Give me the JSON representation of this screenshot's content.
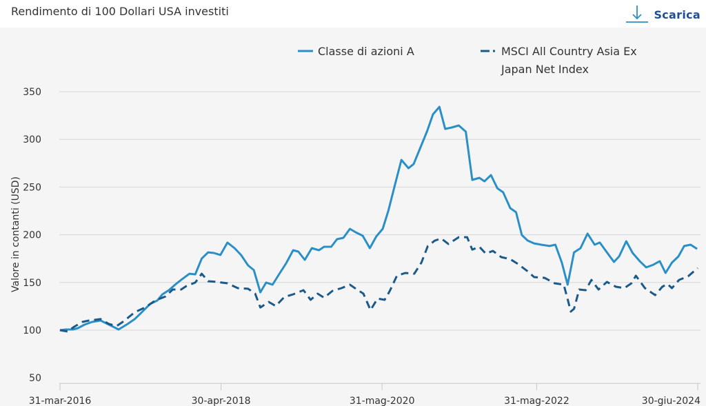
{
  "header": {
    "title": "Rendimento di 100 Dollari USA investiti",
    "download_label": "Scarica",
    "download_icon": "download-arrow-icon"
  },
  "colors": {
    "fund": "#2a8fc7",
    "index": "#1a5a8a",
    "download": "#1f4e96",
    "grid": "#d6d6d6",
    "background": "#f5f5f5"
  },
  "chart_data": {
    "type": "line",
    "title": "Rendimento di 100 Dollari USA investiti",
    "xlabel": "",
    "ylabel": "Valore in contanti (USD)",
    "ylim": [
      50,
      350
    ],
    "yticks": [
      50,
      100,
      150,
      200,
      250,
      300,
      350
    ],
    "xlim_months": [
      0,
      99
    ],
    "xticks": [
      {
        "label": "31-mar-2016",
        "month": 0
      },
      {
        "label": "30-apr-2018",
        "month": 25
      },
      {
        "label": "31-mag-2020",
        "month": 50
      },
      {
        "label": "31-mag-2022",
        "month": 74
      },
      {
        "label": "30-giu-2024",
        "month": 99
      }
    ],
    "grid": true,
    "legend": {
      "placement": "top-right",
      "entries": [
        {
          "name": "Classe di azioni A",
          "lines": [
            "Classe di azioni A"
          ],
          "style": "solid"
        },
        {
          "name": "MSCI All Country Asia Ex Japan Net Index",
          "lines": [
            "MSCI All Country Asia Ex",
            "Japan Net Index"
          ],
          "style": "dashed"
        }
      ]
    },
    "series": [
      {
        "name": "Classe di azioni A",
        "style": "solid",
        "points": [
          [
            0,
            100
          ],
          [
            0.9,
            100.7
          ],
          [
            2,
            100.7
          ],
          [
            2.8,
            102.2
          ],
          [
            3.8,
            105.8
          ],
          [
            5,
            108.7
          ],
          [
            6.3,
            110.1
          ],
          [
            7.8,
            105.1
          ],
          [
            9.1,
            100.7
          ],
          [
            10.5,
            106.5
          ],
          [
            11.6,
            111.6
          ],
          [
            12.6,
            118.1
          ],
          [
            14,
            127.5
          ],
          [
            15.1,
            131.1
          ],
          [
            15.9,
            137.6
          ],
          [
            16.9,
            141.9
          ],
          [
            18,
            148.4
          ],
          [
            18.8,
            152.7
          ],
          [
            20.1,
            159.2
          ],
          [
            21,
            158.5
          ],
          [
            22,
            175.1
          ],
          [
            23,
            181.6
          ],
          [
            23.9,
            180.9
          ],
          [
            24.9,
            178.8
          ],
          [
            26,
            191.8
          ],
          [
            27.1,
            186
          ],
          [
            28.1,
            178.8
          ],
          [
            29.2,
            167.9
          ],
          [
            30.1,
            162.9
          ],
          [
            31.1,
            139.7
          ],
          [
            32,
            149.9
          ],
          [
            33,
            147.7
          ],
          [
            34,
            158.5
          ],
          [
            35.1,
            170.1
          ],
          [
            36.2,
            183.8
          ],
          [
            37,
            182.4
          ],
          [
            38,
            173.7
          ],
          [
            39.1,
            186
          ],
          [
            40.2,
            183.8
          ],
          [
            41,
            187.4
          ],
          [
            42.1,
            187.4
          ],
          [
            43,
            195.4
          ],
          [
            44,
            196.8
          ],
          [
            45,
            206.2
          ],
          [
            45.9,
            202.6
          ],
          [
            47,
            199
          ],
          [
            48.1,
            186
          ],
          [
            49.1,
            198.3
          ],
          [
            50.1,
            206.2
          ],
          [
            51,
            225.8
          ],
          [
            52,
            252.5
          ],
          [
            53,
            278.5
          ],
          [
            54.1,
            269.8
          ],
          [
            54.9,
            274.2
          ],
          [
            56,
            292.2
          ],
          [
            57,
            308.8
          ],
          [
            57.9,
            326.2
          ],
          [
            58.9,
            334.1
          ],
          [
            59.8,
            311
          ],
          [
            60.8,
            312.4
          ],
          [
            61.9,
            314.6
          ],
          [
            63,
            308.1
          ],
          [
            64,
            257.5
          ],
          [
            65.1,
            259.7
          ],
          [
            65.9,
            256.1
          ],
          [
            66.9,
            262.6
          ],
          [
            67.9,
            248.8
          ],
          [
            68.8,
            244.5
          ],
          [
            69.9,
            227.9
          ],
          [
            70.8,
            223.6
          ],
          [
            71.7,
            199.7
          ],
          [
            72.6,
            193.9
          ],
          [
            73.6,
            191
          ],
          [
            74.7,
            189.6
          ],
          [
            76,
            188.2
          ],
          [
            76.9,
            189.6
          ],
          [
            77.9,
            170.8
          ],
          [
            78.8,
            147.7
          ],
          [
            79.8,
            181.6
          ],
          [
            80.8,
            185.9
          ],
          [
            81.9,
            201.2
          ],
          [
            83,
            189.6
          ],
          [
            83.8,
            191.8
          ],
          [
            84.9,
            181.6
          ],
          [
            86,
            171.5
          ],
          [
            86.8,
            177.3
          ],
          [
            87.9,
            193.2
          ],
          [
            88.9,
            180.9
          ],
          [
            90,
            172.3
          ],
          [
            91,
            165.8
          ],
          [
            92.1,
            168.6
          ],
          [
            93.1,
            172.3
          ],
          [
            94,
            160
          ],
          [
            95,
            170.8
          ],
          [
            96,
            177.3
          ],
          [
            96.9,
            188.2
          ],
          [
            97.9,
            189.6
          ],
          [
            98.9,
            185.2
          ]
        ]
      },
      {
        "name": "MSCI All Country Asia Ex Japan Net Index",
        "style": "dashed",
        "points": [
          [
            0,
            100
          ],
          [
            1.2,
            98.6
          ],
          [
            2.2,
            103.6
          ],
          [
            3.5,
            108.7
          ],
          [
            4.5,
            110.1
          ],
          [
            6.3,
            111.6
          ],
          [
            7.6,
            106.5
          ],
          [
            8.8,
            104.3
          ],
          [
            9.9,
            109.4
          ],
          [
            11.6,
            118.8
          ],
          [
            13.2,
            123.8
          ],
          [
            14.8,
            131.1
          ],
          [
            16.4,
            135.4
          ],
          [
            17.5,
            142.6
          ],
          [
            18.8,
            142.6
          ],
          [
            19.6,
            146.2
          ],
          [
            21,
            149.9
          ],
          [
            22,
            159.2
          ],
          [
            23,
            151.3
          ],
          [
            24.4,
            150.6
          ],
          [
            26,
            149.1
          ],
          [
            27.6,
            144.1
          ],
          [
            29.2,
            143.4
          ],
          [
            30.3,
            138.3
          ],
          [
            31.1,
            123.8
          ],
          [
            32.4,
            129.6
          ],
          [
            33.5,
            125.3
          ],
          [
            34.8,
            134.7
          ],
          [
            36.2,
            137.6
          ],
          [
            37.8,
            141.9
          ],
          [
            38.9,
            131.8
          ],
          [
            40,
            138.3
          ],
          [
            41,
            134
          ],
          [
            42.3,
            141.2
          ],
          [
            43.7,
            144.1
          ],
          [
            45,
            147.7
          ],
          [
            46.1,
            142.6
          ],
          [
            47.1,
            138.3
          ],
          [
            48.2,
            121
          ],
          [
            49.3,
            133.2
          ],
          [
            50.4,
            131.8
          ],
          [
            51.2,
            141.2
          ],
          [
            52.3,
            157.1
          ],
          [
            53.6,
            160
          ],
          [
            55,
            159.2
          ],
          [
            56.1,
            170.8
          ],
          [
            57.1,
            188.2
          ],
          [
            58.2,
            193.9
          ],
          [
            59.2,
            196.1
          ],
          [
            60.3,
            190.3
          ],
          [
            61.9,
            197.5
          ],
          [
            63.2,
            197.5
          ],
          [
            64,
            184.5
          ],
          [
            65.1,
            187.4
          ],
          [
            66.1,
            180.2
          ],
          [
            67.2,
            183.1
          ],
          [
            68.5,
            176.6
          ],
          [
            69.9,
            174.4
          ],
          [
            71.1,
            169.4
          ],
          [
            72.5,
            162.2
          ],
          [
            73.6,
            155.6
          ],
          [
            75.2,
            154.9
          ],
          [
            76.8,
            149.1
          ],
          [
            78.2,
            147.7
          ],
          [
            78.8,
            132.5
          ],
          [
            79.3,
            119.5
          ],
          [
            79.8,
            122.4
          ],
          [
            80.6,
            142.6
          ],
          [
            81.6,
            141.9
          ],
          [
            82.5,
            152.7
          ],
          [
            83.6,
            142.6
          ],
          [
            84.9,
            150.6
          ],
          [
            86.3,
            145.5
          ],
          [
            87.6,
            144.1
          ],
          [
            88.7,
            149.1
          ],
          [
            89.4,
            157.1
          ],
          [
            90.8,
            144.1
          ],
          [
            92.4,
            136.8
          ],
          [
            93.5,
            145.5
          ],
          [
            94.3,
            148.4
          ],
          [
            95,
            144.1
          ],
          [
            96.1,
            152.7
          ],
          [
            97.5,
            156.4
          ],
          [
            99,
            165.1
          ]
        ]
      }
    ]
  }
}
